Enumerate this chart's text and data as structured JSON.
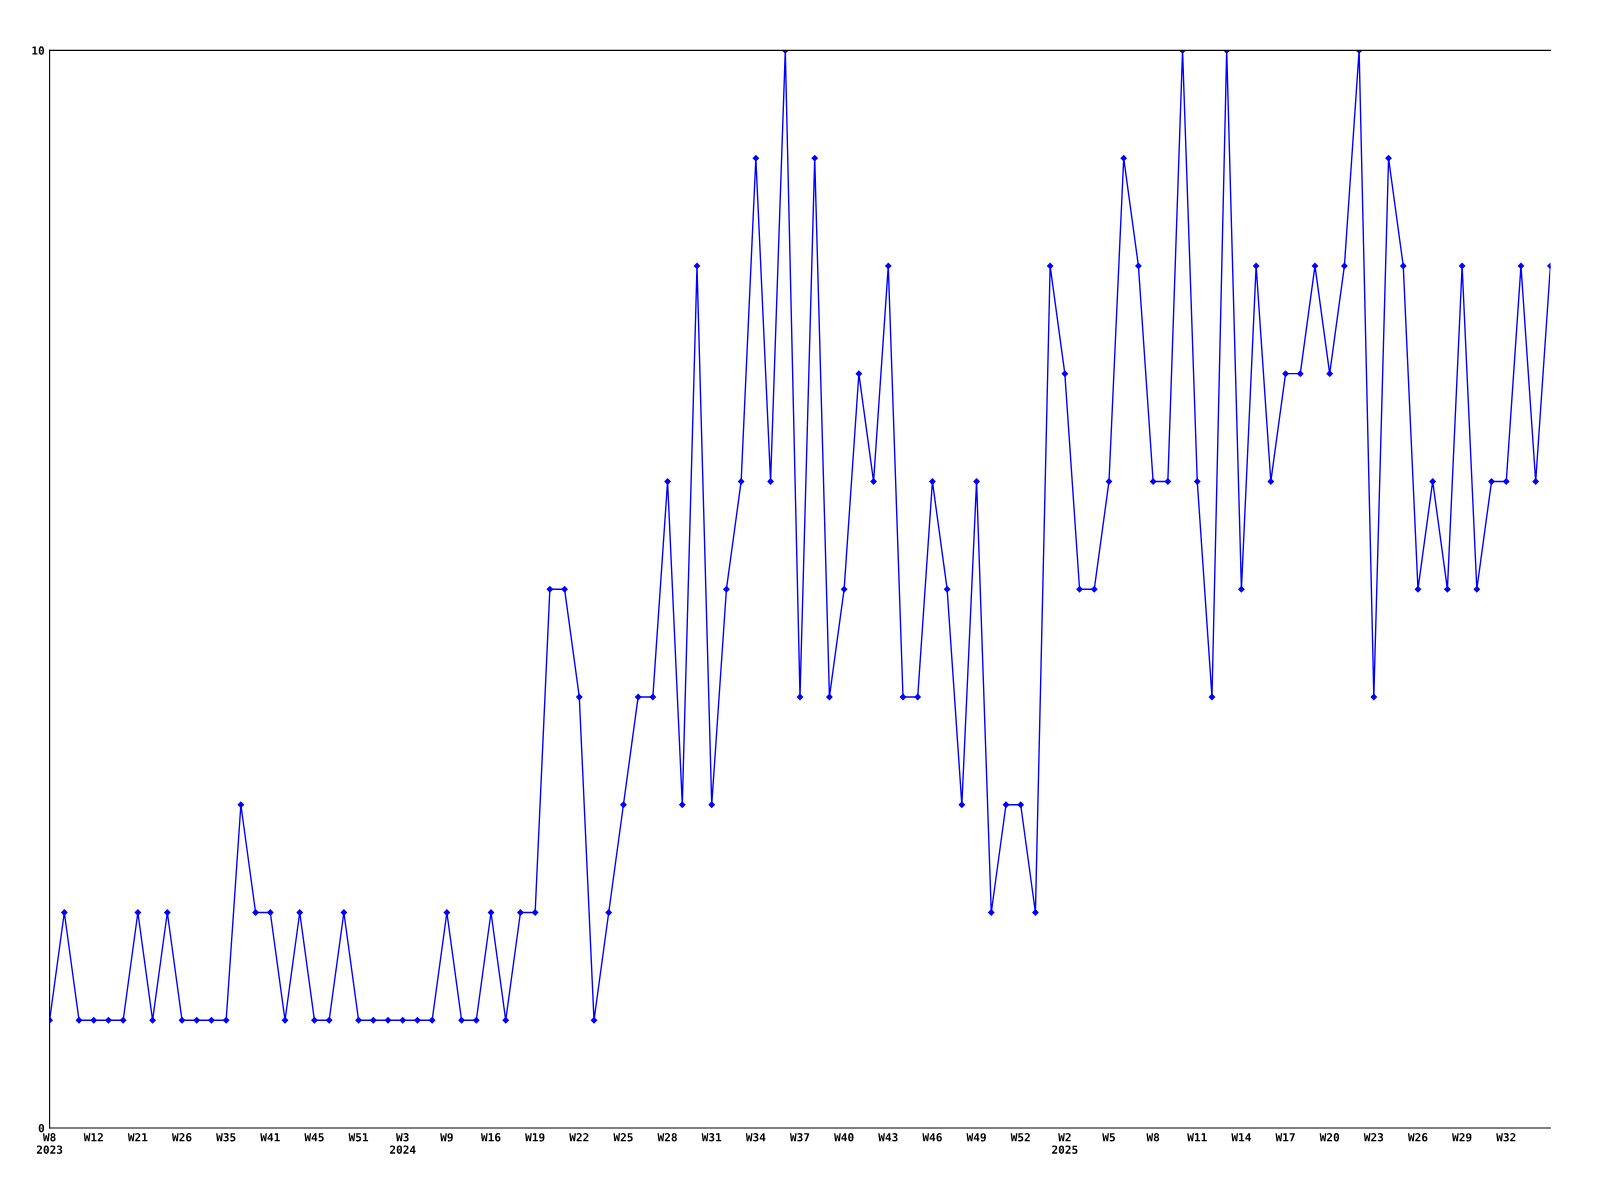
{
  "chart_data": {
    "type": "line",
    "categories": [
      "W8\n2023",
      null,
      null,
      "W12",
      null,
      null,
      "W21",
      null,
      null,
      "W26",
      null,
      null,
      "W35",
      null,
      null,
      "W41",
      null,
      null,
      "W45",
      null,
      null,
      "W51",
      null,
      null,
      "W3\n2024",
      null,
      null,
      "W9",
      null,
      null,
      "W16",
      null,
      null,
      "W19",
      null,
      null,
      "W22",
      null,
      null,
      "W25",
      null,
      null,
      "W28",
      null,
      null,
      "W31",
      null,
      null,
      "W34",
      null,
      null,
      "W37",
      null,
      null,
      "W40",
      null,
      null,
      "W43",
      null,
      null,
      "W46",
      null,
      null,
      "W49",
      null,
      null,
      "W52",
      null,
      null,
      "W2\n2025",
      null,
      null,
      "W5",
      null,
      null,
      "W8",
      null,
      null,
      "W11",
      null,
      null,
      "W14",
      null,
      null,
      "W17",
      null,
      null,
      "W20",
      null,
      null,
      "W23",
      null,
      null,
      "W26",
      null,
      null,
      "W29",
      null,
      null,
      "W32",
      null,
      null,
      null
    ],
    "series": [
      {
        "color": "#0000ff",
        "values": [
          1,
          2,
          1,
          1,
          1,
          1,
          2,
          1,
          2,
          1,
          1,
          1,
          1,
          3,
          2,
          2,
          1,
          2,
          1,
          1,
          2,
          1,
          1,
          1,
          1,
          1,
          1,
          2,
          1,
          1,
          2,
          1,
          2,
          2,
          5,
          5,
          4,
          1,
          2,
          3,
          4,
          4,
          6,
          3,
          8,
          3,
          5,
          6,
          9,
          6,
          10,
          4,
          9,
          4,
          5,
          7,
          6,
          8,
          4,
          4,
          6,
          5,
          3,
          6,
          2,
          3,
          3,
          2,
          8,
          7,
          5,
          5,
          6,
          9,
          8,
          6,
          6,
          10,
          6,
          4,
          10,
          5,
          8,
          6,
          7,
          7,
          8,
          7,
          8,
          10,
          4,
          9,
          8,
          5,
          6,
          5,
          8,
          5,
          6,
          6,
          8,
          6,
          8
        ]
      }
    ],
    "ylim": [
      0,
      10
    ],
    "yticks": [
      0,
      10
    ],
    "grid": false,
    "legend": false,
    "marker": "diamond",
    "line_style": "solid"
  }
}
